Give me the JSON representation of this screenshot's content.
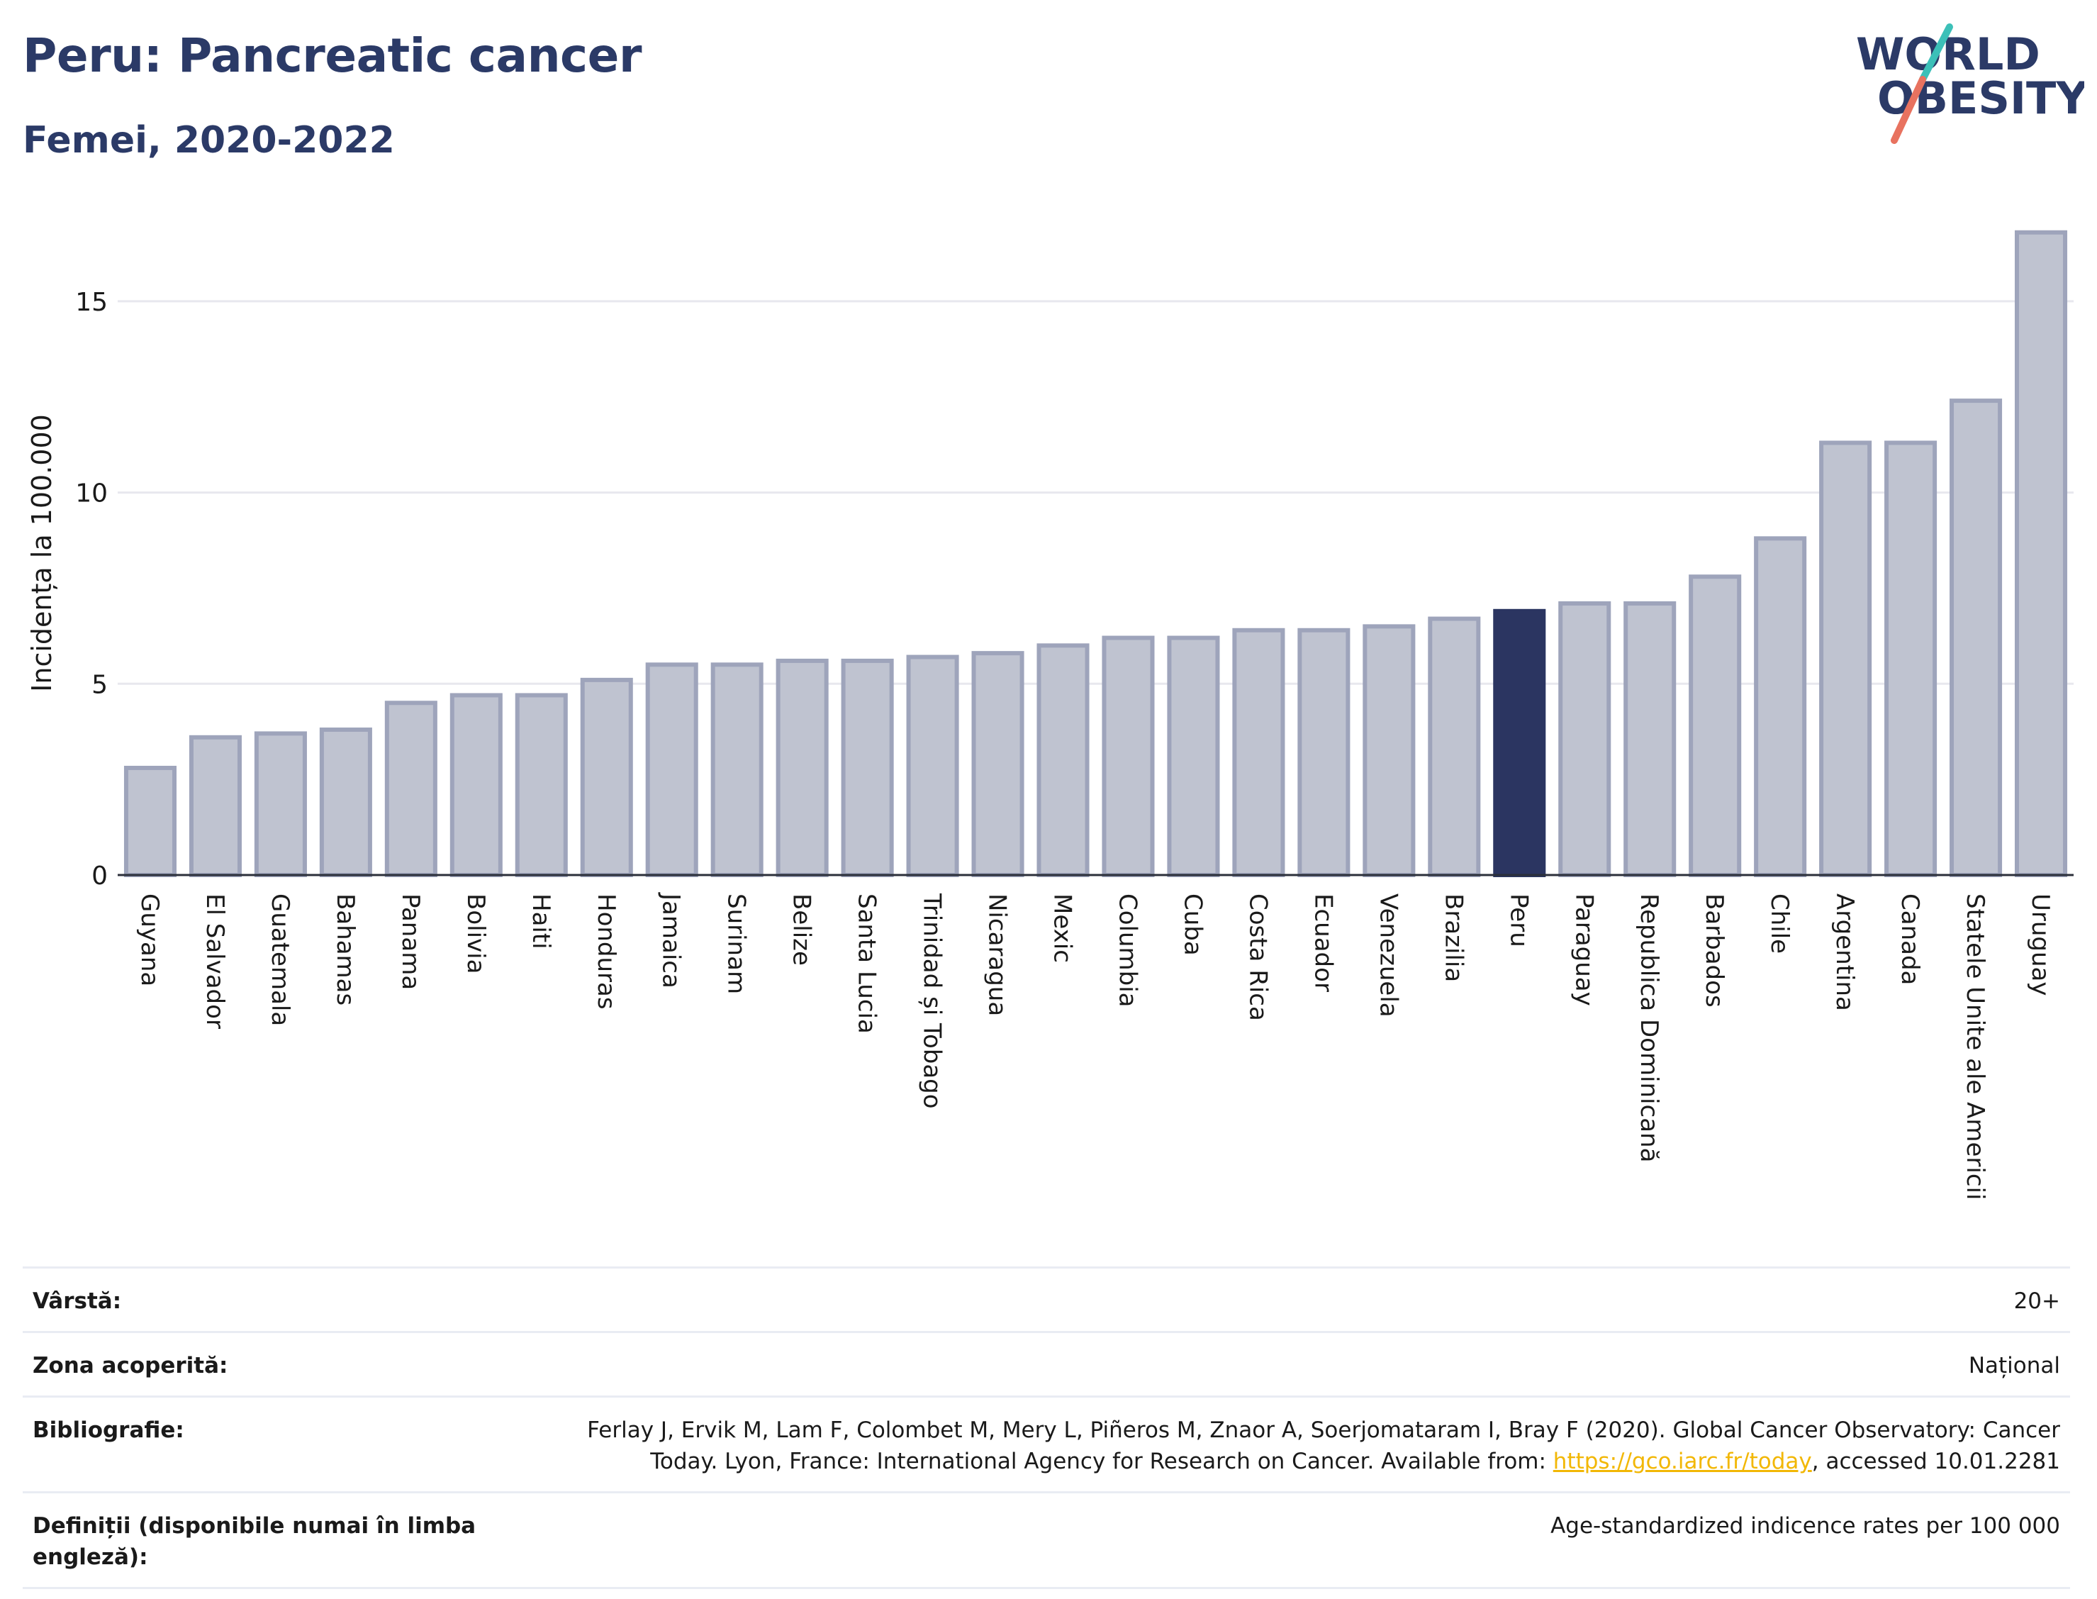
{
  "header": {
    "title": "Peru: Pancreatic cancer",
    "subtitle": "Femei, 2020-2022",
    "logo_text_line1": "WORLD",
    "logo_text_line2": "OBESITY"
  },
  "colors": {
    "highlight": "#2b3561",
    "bar_fill": "#bfc3d0",
    "bar_stroke": "#9ea4bb",
    "title": "#2b3a67",
    "grid": "#e8e8ee",
    "logo_teal": "#3cc0b8",
    "logo_coral": "#e8725f",
    "link": "#f2b705"
  },
  "chart_data": {
    "type": "bar",
    "title": "Peru: Pancreatic cancer",
    "subtitle": "Femei, 2020-2022",
    "xlabel": "",
    "ylabel": "Incidența la 100.000",
    "ylim": [
      0,
      17.5
    ],
    "yticks": [
      0,
      5,
      10,
      15
    ],
    "grid": true,
    "highlight_category": "Peru",
    "categories": [
      "Guyana",
      "El Salvador",
      "Guatemala",
      "Bahamas",
      "Panama",
      "Bolivia",
      "Haiti",
      "Honduras",
      "Jamaica",
      "Surinam",
      "Belize",
      "Santa Lucia",
      "Trinidad și Tobago",
      "Nicaragua",
      "Mexic",
      "Columbia",
      "Cuba",
      "Costa Rica",
      "Ecuador",
      "Venezuela",
      "Brazilia",
      "Peru",
      "Paraguay",
      "Republica Dominicană",
      "Barbados",
      "Chile",
      "Argentina",
      "Canada",
      "Statele Unite ale Americii",
      "Uruguay"
    ],
    "values": [
      2.8,
      3.6,
      3.7,
      3.8,
      4.5,
      4.7,
      4.7,
      5.1,
      5.5,
      5.5,
      5.6,
      5.6,
      5.7,
      5.8,
      6.0,
      6.2,
      6.2,
      6.4,
      6.4,
      6.5,
      6.7,
      6.9,
      7.1,
      7.1,
      7.8,
      8.8,
      11.3,
      11.3,
      12.4,
      16.8
    ]
  },
  "meta": [
    {
      "label": "Vârstă:",
      "value": "20+"
    },
    {
      "label": "Zona acoperită:",
      "value": "Național"
    },
    {
      "label": "Bibliografie:",
      "value_before": "Ferlay J, Ervik M, Lam F, Colombet M, Mery L, Piñeros M, Znaor A, Soerjomataram I, Bray F (2020). Global Cancer Observatory: Cancer Today. Lyon, France: International Agency for Research on Cancer. Available from: ",
      "link": "https://gco.iarc.fr/today",
      "value_after": ", accessed 10.01.2281"
    },
    {
      "label": "Definiții (disponibile numai în limba engleză):",
      "value": "Age-standardized indicence rates per 100 000"
    }
  ]
}
